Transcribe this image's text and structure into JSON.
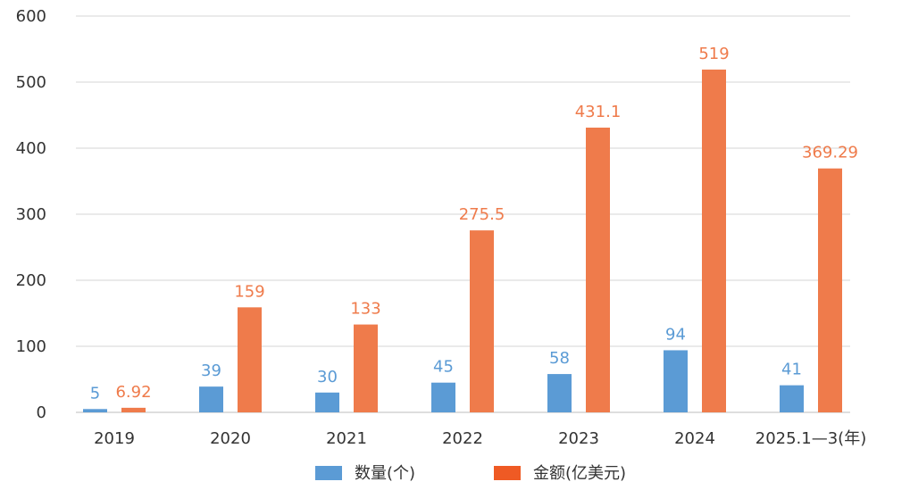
{
  "chart_data": {
    "type": "bar",
    "categories": [
      "2019",
      "2020",
      "2021",
      "2022",
      "2023",
      "2024",
      "2025.1—3(年)"
    ],
    "series": [
      {
        "name": "数量(个)",
        "color": "#5b9bd5",
        "values": [
          5,
          39,
          30,
          45,
          58,
          94,
          41
        ],
        "labels": [
          "5",
          "39",
          "30",
          "45",
          "58",
          "94",
          "41"
        ]
      },
      {
        "name": "金额(亿美元)",
        "color": "#ef7b4b",
        "values": [
          6.92,
          159,
          133,
          275.5,
          431.1,
          519,
          369.29
        ],
        "labels": [
          "6.92",
          "159",
          "133",
          "275.5",
          "431.1",
          "519",
          "369.29"
        ]
      }
    ],
    "y_ticks": [
      "0",
      "100",
      "200",
      "300",
      "400",
      "500",
      "600"
    ],
    "ylim": [
      0,
      600
    ],
    "grid": true,
    "legend_position": "bottom",
    "legend": [
      {
        "label": "数量(个)",
        "color": "#5b9bd5"
      },
      {
        "label": "金额(亿美元)",
        "color": "#ef5a24"
      }
    ]
  }
}
